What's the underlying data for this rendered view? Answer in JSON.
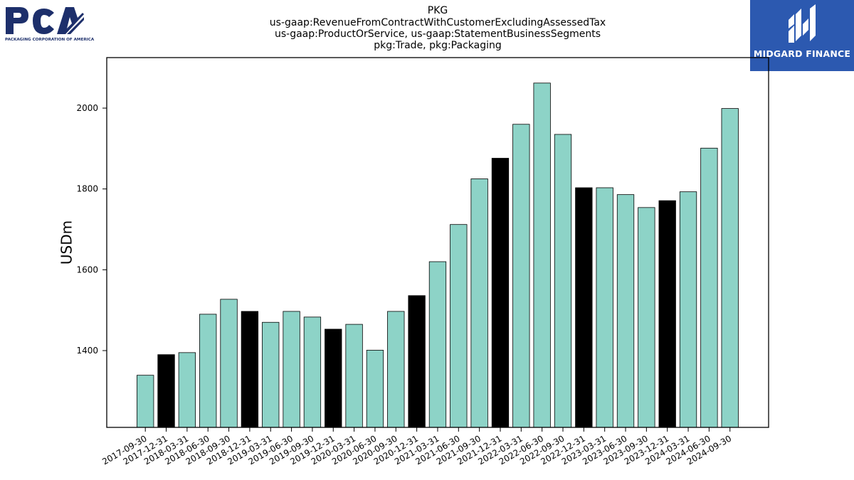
{
  "header": {
    "title_lines": [
      "PKG",
      "us-gaap:RevenueFromContractWithCustomerExcludingAssessedTax",
      "us-gaap:ProductOrService, us-gaap:StatementBusinessSegments",
      "pkg:Trade, pkg:Packaging"
    ]
  },
  "logos": {
    "left": {
      "name": "PCA",
      "subtitle": "PACKAGING CORPORATION OF AMERICA",
      "color": "#1d2f6b"
    },
    "right": {
      "name": "MIDGARD FINANCE",
      "background": "#2c59b0"
    }
  },
  "chart_data": {
    "type": "bar",
    "ylabel": "USDm",
    "xlabel": "",
    "ylim": [
      1210,
      2125
    ],
    "yticks": [
      1400,
      1600,
      1800,
      2000
    ],
    "colors": {
      "default": "#8dd3c7",
      "highlight": "#000000"
    },
    "categories": [
      "2017-09-30",
      "2017-12-31",
      "2018-03-31",
      "2018-06-30",
      "2018-09-30",
      "2018-12-31",
      "2019-03-31",
      "2019-06-30",
      "2019-09-30",
      "2019-12-31",
      "2020-03-31",
      "2020-06-30",
      "2020-09-30",
      "2020-12-31",
      "2021-03-31",
      "2021-06-30",
      "2021-09-30",
      "2021-12-31",
      "2022-03-31",
      "2022-06-30",
      "2022-09-30",
      "2022-12-31",
      "2023-03-31",
      "2023-06-30",
      "2023-09-30",
      "2023-12-31",
      "2024-03-31",
      "2024-06-30",
      "2024-09-30"
    ],
    "values": [
      1339,
      1390,
      1395,
      1490,
      1527,
      1497,
      1470,
      1497,
      1483,
      1453,
      1465,
      1401,
      1497,
      1536,
      1620,
      1712,
      1825,
      1876,
      1960,
      2062,
      1935,
      1803,
      1803,
      1786,
      1754,
      1771,
      1793,
      1901,
      1999
    ],
    "highlight": [
      false,
      true,
      false,
      false,
      false,
      true,
      false,
      false,
      false,
      true,
      false,
      false,
      false,
      true,
      false,
      false,
      false,
      true,
      false,
      false,
      false,
      true,
      false,
      false,
      false,
      true,
      false,
      false,
      false
    ]
  }
}
